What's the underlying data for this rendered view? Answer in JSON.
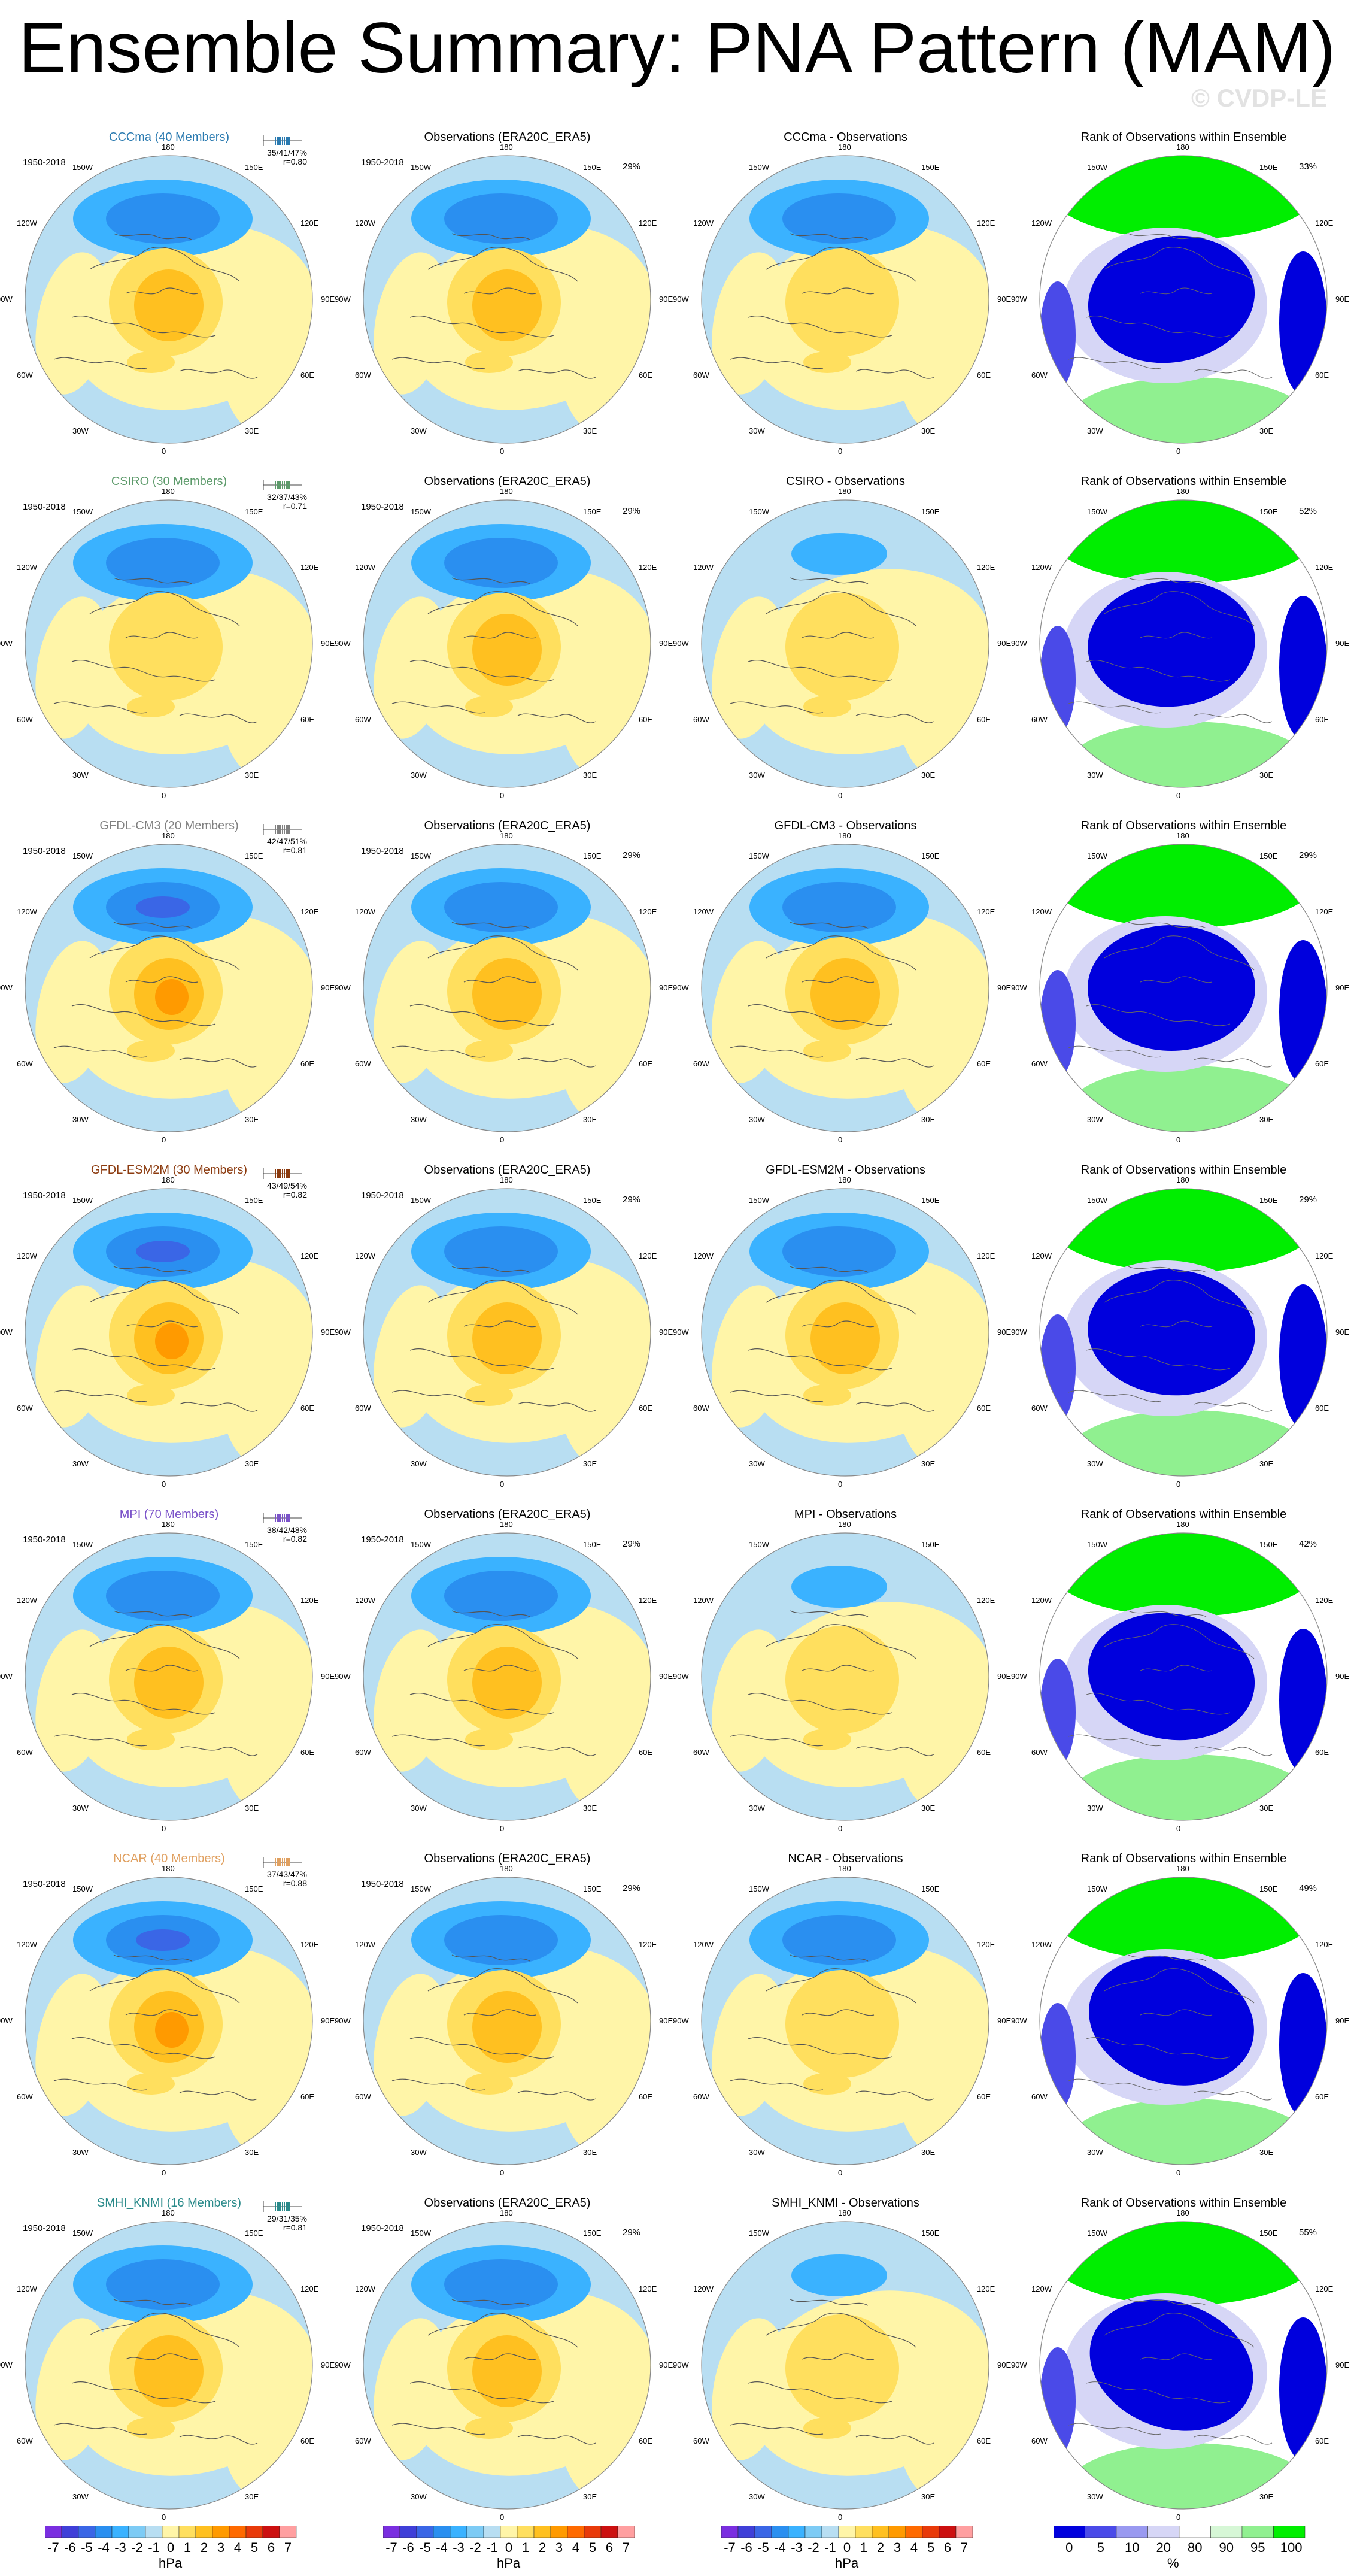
{
  "title": "Ensemble Summary: PNA Pattern (MAM)",
  "watermark": "© CVDP-LE",
  "column_titles": {
    "obs": "Observations (ERA20C_ERA5)",
    "rank": "Rank of Observations within Ensemble"
  },
  "years": "1950-2018",
  "lon_labels": [
    "180",
    "150E",
    "120E",
    "90E",
    "60E",
    "30E",
    "0",
    "30W",
    "60W",
    "90W",
    "120W",
    "150W"
  ],
  "rows": [
    {
      "model": "CCCma (40 Members)",
      "diff": "CCCma - Observations",
      "stats": "35/41/47%",
      "corr": "r=0.80",
      "obs_pct": "29%",
      "rank_pct": "33%",
      "color": "#2a7ab0"
    },
    {
      "model": "CSIRO (30 Members)",
      "diff": "CSIRO - Observations",
      "stats": "32/37/43%",
      "corr": "r=0.71",
      "obs_pct": "29%",
      "rank_pct": "52%",
      "color": "#5c9a6a"
    },
    {
      "model": "GFDL-CM3 (20 Members)",
      "diff": "GFDL-CM3 - Observations",
      "stats": "42/47/51%",
      "corr": "r=0.81",
      "obs_pct": "29%",
      "rank_pct": "29%",
      "color": "#808080"
    },
    {
      "model": "GFDL-ESM2M (30 Members)",
      "diff": "GFDL-ESM2M - Observations",
      "stats": "43/49/54%",
      "corr": "r=0.82",
      "obs_pct": "29%",
      "rank_pct": "29%",
      "color": "#8b3a0e"
    },
    {
      "model": "MPI (70 Members)",
      "diff": "MPI - Observations",
      "stats": "38/42/48%",
      "corr": "r=0.82",
      "obs_pct": "29%",
      "rank_pct": "42%",
      "color": "#7b53c9"
    },
    {
      "model": "NCAR (40 Members)",
      "diff": "NCAR - Observations",
      "stats": "37/43/47%",
      "corr": "r=0.88",
      "obs_pct": "29%",
      "rank_pct": "49%",
      "color": "#e0a060"
    },
    {
      "model": "SMHI_KNMI (16 Members)",
      "diff": "SMHI_KNMI - Observations",
      "stats": "29/31/35%",
      "corr": "r=0.81",
      "obs_pct": "29%",
      "rank_pct": "55%",
      "color": "#2a8a8a"
    }
  ],
  "chart_data": {
    "type": "heatmap",
    "projection": "polar stereographic (Northern Hemisphere)",
    "colorbar_hpa": {
      "units": "hPa",
      "ticks": [
        "-7",
        "-6",
        "-5",
        "-4",
        "-3",
        "-2",
        "-1",
        "0",
        "1",
        "2",
        "3",
        "4",
        "5",
        "6",
        "7"
      ],
      "colors": [
        "#7a2ee0",
        "#3f3fd8",
        "#3a66e6",
        "#2a8ff0",
        "#3ab2ff",
        "#7dcbf5",
        "#b8def2",
        "#fff5a8",
        "#ffdf5e",
        "#ffc020",
        "#ff9a00",
        "#ff6a00",
        "#e83a0a",
        "#cc1010",
        "#ff9fa0"
      ]
    },
    "colorbar_rank": {
      "units": "%",
      "ticks": [
        "0",
        "5",
        "10",
        "20",
        "80",
        "90",
        "95",
        "100"
      ],
      "colors": [
        "#0000dd",
        "#4a4ae8",
        "#9999f0",
        "#d6d6f6",
        "#ffffff",
        "#d6f7d6",
        "#90f090",
        "#00ee00"
      ]
    },
    "field_levels": {
      "strong_low": "#2a8ff0",
      "mid_low": "#3ab2ff",
      "weak_low": "#b8def2",
      "weak_high": "#fff5a8",
      "mid_high": "#ffdf5e",
      "strong_high": "#ffc020",
      "peak_high": "#ff9a00"
    }
  }
}
